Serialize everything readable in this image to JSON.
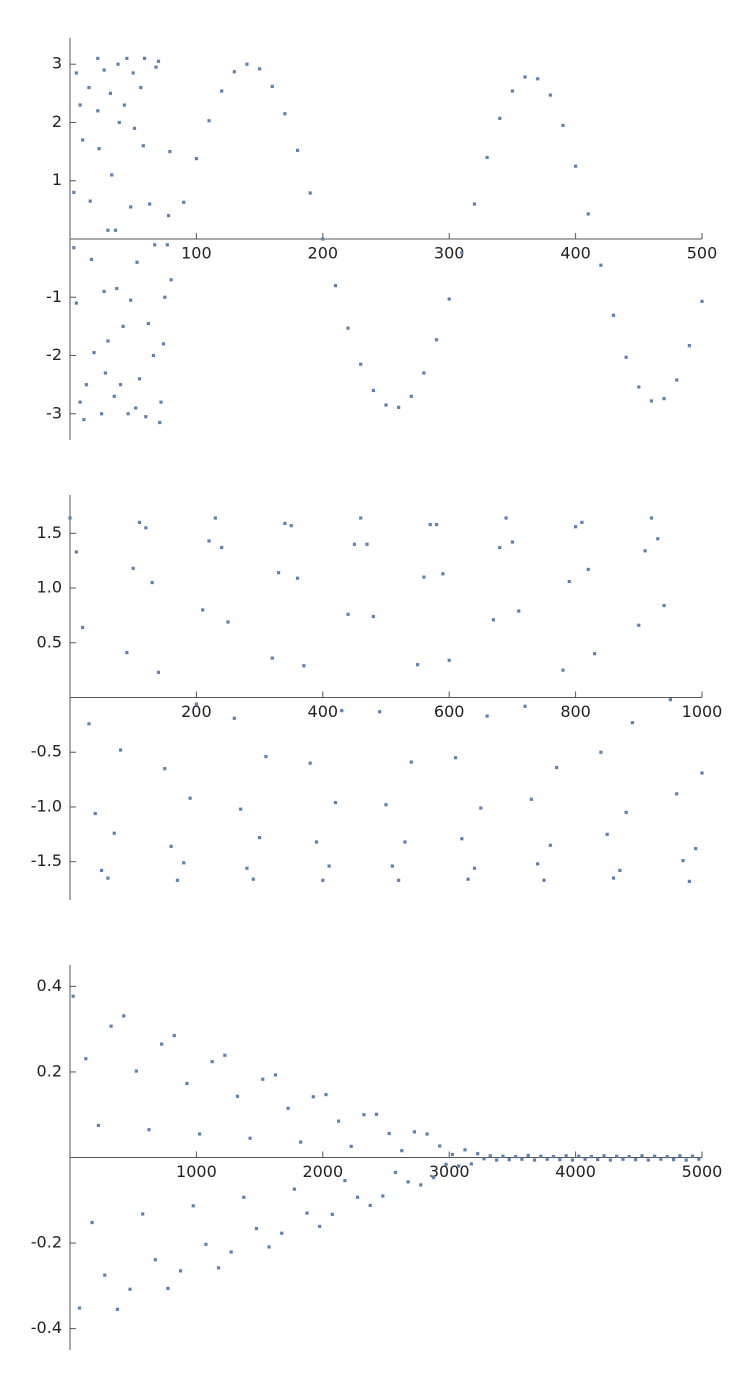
{
  "chart_data": [
    {
      "type": "scatter",
      "color": "#5e81b5",
      "xlim": [
        0,
        500
      ],
      "ylim": [
        -3.45,
        3.45
      ],
      "xticks": [
        100,
        200,
        300,
        400,
        500
      ],
      "yticks": [
        -3,
        -2,
        -1,
        1,
        2,
        3
      ],
      "x": [
        3,
        3,
        5,
        5,
        8,
        8,
        10,
        11,
        13,
        15,
        16,
        17,
        19,
        22,
        22,
        23,
        25,
        27,
        27,
        28,
        30,
        30,
        32,
        33,
        35,
        36,
        37,
        38,
        39,
        40,
        42,
        43,
        45,
        46,
        48,
        48,
        50,
        51,
        52,
        53,
        55,
        56,
        58,
        59,
        60,
        62,
        63,
        66,
        67,
        68,
        70,
        71,
        72,
        74,
        75,
        77,
        78,
        79,
        80,
        90,
        100,
        110,
        120,
        130,
        140,
        150,
        160,
        170,
        180,
        190,
        200,
        210,
        220,
        230,
        240,
        250,
        260,
        270,
        280,
        290,
        300,
        310,
        320,
        330,
        340,
        350,
        360,
        370,
        380,
        390,
        400,
        410,
        420,
        430,
        440,
        450,
        460,
        470,
        480,
        490,
        500
      ],
      "values": [
        0.8,
        -0.15,
        2.85,
        -1.1,
        2.3,
        -2.8,
        1.7,
        -3.1,
        -2.5,
        2.6,
        0.65,
        -0.35,
        -1.95,
        3.1,
        2.2,
        1.55,
        -3.0,
        2.9,
        -0.9,
        -2.3,
        0.15,
        -1.75,
        2.5,
        1.1,
        -2.7,
        0.15,
        -0.85,
        3.0,
        2.0,
        -2.5,
        -1.5,
        2.3,
        3.1,
        -3.0,
        0.55,
        -1.05,
        2.85,
        1.9,
        -2.9,
        -0.4,
        -2.4,
        2.6,
        1.6,
        3.1,
        -3.05,
        -1.45,
        0.6,
        -2.0,
        -0.1,
        2.95,
        3.05,
        -3.15,
        -2.8,
        -1.8,
        -1.0,
        -0.1,
        0.4,
        1.5,
        -0.7,
        0.63,
        1.38,
        2.03,
        2.54,
        2.87,
        3.0,
        2.92,
        2.62,
        2.15,
        1.52,
        0.79,
        0,
        -0.8,
        -1.53,
        -2.15,
        -2.6,
        -2.85,
        -2.89,
        -2.7,
        -2.3,
        -1.73,
        -1.03,
        -0.24,
        0.6,
        1.4,
        2.07,
        2.54,
        2.78,
        2.75,
        2.47,
        1.95,
        1.25,
        0.43,
        -0.45,
        -1.31,
        -2.03,
        -2.54,
        -2.78,
        -2.74,
        -2.42,
        -1.83,
        -1.07
      ]
    },
    {
      "type": "scatter",
      "color": "#5e81b5",
      "xlim": [
        0,
        1000
      ],
      "ylim": [
        -1.85,
        1.85
      ],
      "xticks": [
        200,
        400,
        600,
        800,
        1000
      ],
      "yticks": [
        {
          "value": -1.5,
          "label": "-1.5"
        },
        {
          "value": -1,
          "label": "-1.0"
        },
        -0.5,
        0.5,
        {
          "value": 1,
          "label": "1.0"
        },
        1.5
      ],
      "x": [
        0,
        10,
        20,
        30,
        40,
        50,
        60,
        70,
        80,
        90,
        100,
        110,
        120,
        130,
        140,
        150,
        160,
        170,
        180,
        190,
        200,
        210,
        220,
        230,
        240,
        250,
        260,
        270,
        280,
        290,
        300,
        310,
        320,
        330,
        340,
        350,
        360,
        370,
        380,
        390,
        400,
        410,
        420,
        430,
        440,
        450,
        460,
        470,
        480,
        490,
        500,
        510,
        520,
        530,
        540,
        550,
        560,
        570,
        580,
        590,
        600,
        610,
        620,
        630,
        640,
        650,
        660,
        670,
        680,
        690,
        700,
        710,
        720,
        730,
        740,
        750,
        760,
        770,
        780,
        790,
        800,
        810,
        820,
        830,
        840,
        850,
        860,
        870,
        880,
        890,
        900,
        910,
        920,
        930,
        940,
        950,
        960,
        970,
        980,
        990,
        1000
      ],
      "values": [
        1.64,
        1.33,
        0.64,
        -0.24,
        -1.06,
        -1.58,
        -1.65,
        -1.24,
        -0.48,
        0.41,
        1.18,
        1.6,
        1.55,
        1.05,
        0.23,
        -0.65,
        -1.36,
        -1.67,
        -1.51,
        -0.92,
        -0.06,
        0.8,
        1.43,
        1.64,
        1.37,
        0.69,
        -0.19,
        -1.02,
        -1.56,
        -1.66,
        -1.28,
        -0.54,
        0.36,
        1.14,
        1.59,
        1.57,
        1.09,
        0.29,
        -0.6,
        -1.32,
        -1.67,
        -1.54,
        -0.96,
        -0.12,
        0.76,
        1.4,
        1.64,
        1.4,
        0.74,
        -0.13,
        -0.98,
        -1.54,
        -1.67,
        -1.32,
        -0.59,
        0.3,
        1.1,
        1.58,
        1.58,
        1.13,
        0.34,
        -0.55,
        -1.29,
        -1.66,
        -1.56,
        -1.01,
        -0.17,
        0.71,
        1.37,
        1.64,
        1.42,
        0.79,
        -0.08,
        -0.93,
        -1.52,
        -1.67,
        -1.35,
        -0.64,
        0.25,
        1.06,
        1.56,
        1.6,
        1.17,
        0.4,
        -0.5,
        -1.25,
        -1.65,
        -1.58,
        -1.05,
        -0.23,
        0.66,
        1.34,
        1.64,
        1.45,
        0.84,
        -0.02,
        -0.88,
        -1.49,
        -1.68,
        -1.38,
        -0.69
      ]
    },
    {
      "type": "scatter",
      "color": "#5e81b5",
      "xlim": [
        0,
        5000
      ],
      "ylim": [
        -0.45,
        0.45
      ],
      "xticks": [
        1000,
        2000,
        3000,
        4000,
        5000
      ],
      "yticks": [
        -0.4,
        -0.2,
        0.2,
        0.4
      ],
      "x": [
        25,
        75,
        125,
        175,
        225,
        275,
        325,
        375,
        425,
        475,
        525,
        575,
        625,
        675,
        725,
        775,
        825,
        875,
        925,
        975,
        1025,
        1075,
        1125,
        1175,
        1225,
        1275,
        1325,
        1375,
        1425,
        1475,
        1525,
        1575,
        1625,
        1675,
        1725,
        1775,
        1825,
        1875,
        1925,
        1975,
        2025,
        2075,
        2125,
        2175,
        2225,
        2275,
        2325,
        2375,
        2425,
        2475,
        2525,
        2575,
        2625,
        2675,
        2725,
        2775,
        2825,
        2875,
        2925,
        2975,
        3025,
        3075,
        3125,
        3175,
        3225,
        3275,
        3325,
        3375,
        3425,
        3475,
        3525,
        3575,
        3625,
        3675,
        3725,
        3775,
        3825,
        3875,
        3925,
        3975,
        4025,
        4075,
        4125,
        4175,
        4225,
        4275,
        4325,
        4375,
        4425,
        4475,
        4525,
        4575,
        4625,
        4675,
        4725,
        4775,
        4825,
        4875,
        4925,
        4975
      ],
      "values": [
        0.377,
        -0.352,
        0.231,
        -0.152,
        0.075,
        -0.275,
        0.307,
        -0.355,
        0.331,
        -0.308,
        0.202,
        -0.132,
        0.065,
        -0.239,
        0.265,
        -0.306,
        0.285,
        -0.265,
        0.173,
        -0.113,
        0.055,
        -0.203,
        0.224,
        -0.258,
        0.239,
        -0.221,
        0.143,
        -0.093,
        0.045,
        -0.166,
        0.183,
        -0.209,
        0.193,
        -0.177,
        0.115,
        -0.074,
        0.036,
        -0.13,
        0.142,
        -0.161,
        0.147,
        -0.133,
        0.085,
        -0.054,
        0.026,
        -0.093,
        0.1,
        -0.112,
        0.101,
        -0.09,
        0.056,
        -0.035,
        0.016,
        -0.057,
        0.06,
        -0.064,
        0.055,
        -0.047,
        0.027,
        -0.016,
        0.007,
        -0.02,
        0.018,
        -0.015,
        0.009,
        -0.003,
        0.004,
        -0.006,
        0.003,
        -0.005,
        0.002,
        -0.004,
        0.005,
        -0.006,
        0.003,
        -0.004,
        0.002,
        -0.005,
        0.004,
        -0.006,
        0.003,
        -0.004,
        0.002,
        -0.005,
        0.004,
        -0.006,
        0.003,
        -0.004,
        0.002,
        -0.005,
        0.004,
        -0.006,
        0.003,
        -0.004,
        0.002,
        -0.005,
        0.004,
        -0.006,
        0.003,
        -0.004
      ]
    }
  ]
}
